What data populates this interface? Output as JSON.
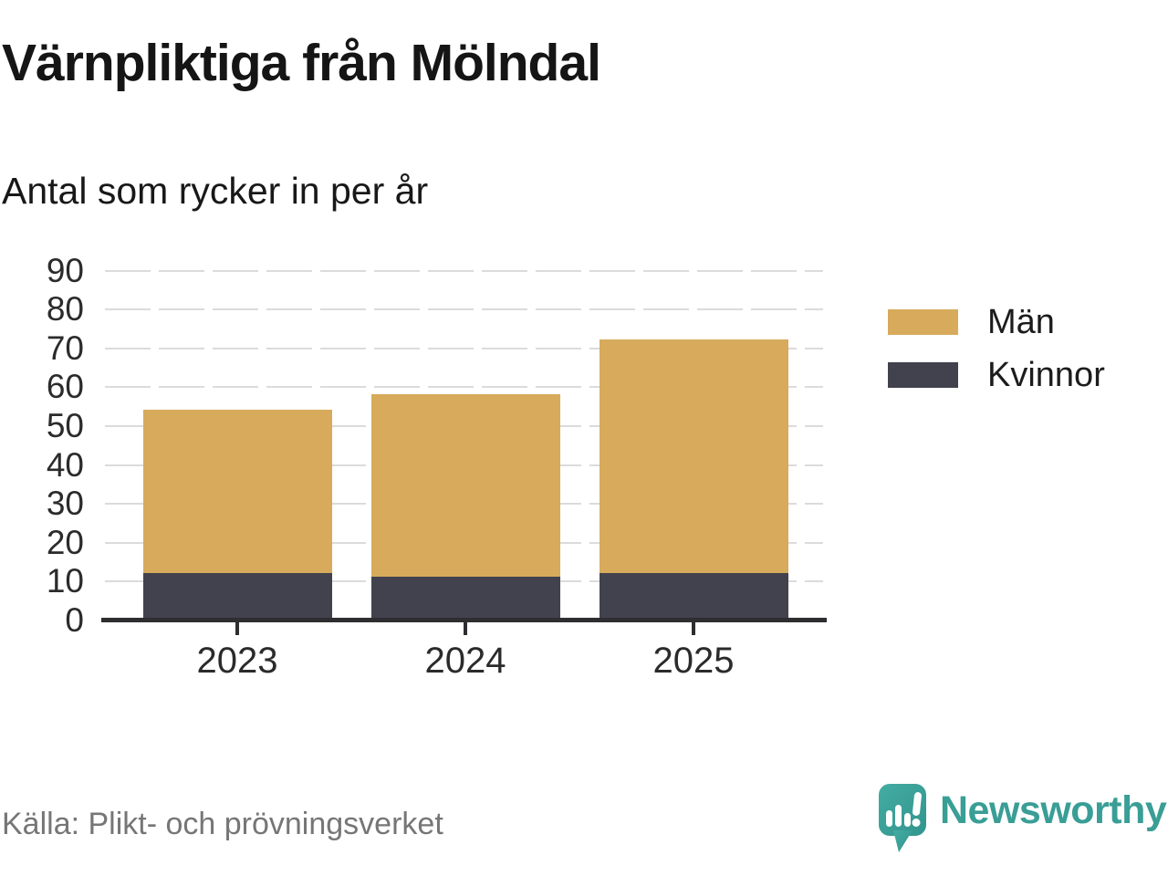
{
  "footer": {
    "source": "Källa: Plikt- och prövningsverket",
    "brand": "Newsworthy"
  },
  "colors": {
    "men": "#D7AB5B",
    "women": "#42424E",
    "brand_teal": "#399E96",
    "axis": "#2E2E31",
    "gridline": "#DBDBDB",
    "text_dark": "#1c1c1c",
    "text_muted": "#767676"
  },
  "chart_data": {
    "type": "bar",
    "stacked": true,
    "title": "Värnpliktiga från Mölndal",
    "subtitle": "Antal som rycker in per år",
    "categories": [
      "2023",
      "2024",
      "2025"
    ],
    "series": [
      {
        "name": "Män",
        "color": "#D7AB5B",
        "values": [
          42,
          47,
          60
        ]
      },
      {
        "name": "Kvinnor",
        "color": "#42424E",
        "values": [
          12,
          11,
          12
        ]
      }
    ],
    "stack_order_bottom_to_top": [
      "Kvinnor",
      "Män"
    ],
    "totals": [
      54,
      58,
      72
    ],
    "xlabel": "",
    "ylabel": "",
    "ylim": [
      0,
      90
    ],
    "ytick_step": 10,
    "grid": "horizontal-dashed",
    "legend_position": "right"
  }
}
